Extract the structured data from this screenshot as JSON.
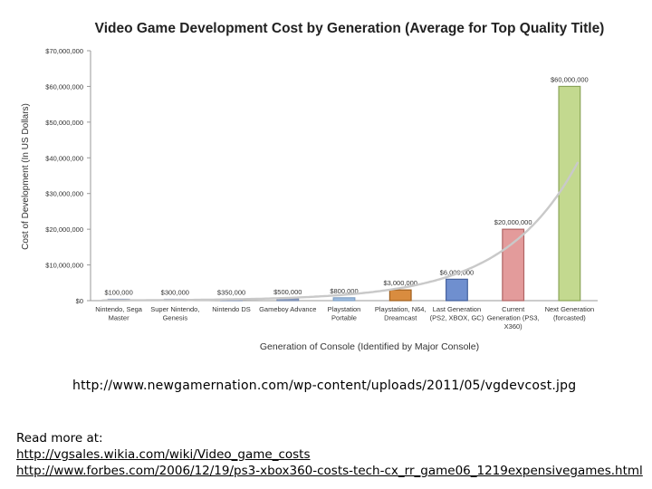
{
  "chart_data": {
    "type": "bar",
    "title": "Video Game Development Cost by Generation (Average for Top Quality Title)",
    "xlabel": "Generation of Console (Identified by Major Console)",
    "ylabel": "Cost of Development (In US Dollars)",
    "ylim": [
      0,
      70000000
    ],
    "ytick_values": [
      0,
      10000000,
      20000000,
      30000000,
      40000000,
      50000000,
      60000000,
      70000000
    ],
    "ytick_labels": [
      "$0",
      "$10,000,000",
      "$20,000,000",
      "$30,000,000",
      "$40,000,000",
      "$50,000,000",
      "$60,000,000",
      "$70,000,000"
    ],
    "categories": [
      [
        "Nintendo, Sega",
        "Master"
      ],
      [
        "Super Nintendo,",
        "Genesis"
      ],
      [
        "Nintendo DS"
      ],
      [
        "Gameboy Advance"
      ],
      [
        "Playstation",
        "Portable"
      ],
      [
        "Playstation, N64,",
        "Dreamcast"
      ],
      [
        "Last Generation",
        "(PS2, XBOX, GC)"
      ],
      [
        "Current",
        "Generation (PS3,",
        "X360)"
      ],
      [
        "Next Generation",
        "(forcasted)"
      ]
    ],
    "values": [
      100000,
      300000,
      350000,
      500000,
      800000,
      3000000,
      6000000,
      20000000,
      60000000
    ],
    "data_labels": [
      "$100,000",
      "$300,000",
      "$350,000",
      "$500,000",
      "$800,000",
      "$3,000,000",
      "$6,000,000",
      "$20,000,000",
      "$60,000,000"
    ],
    "colors": [
      "#b7c3dc",
      "#b7c3dc",
      "#a7b6d3",
      "#9caccd",
      "#9fbfe2",
      "#d98c3f",
      "#6f8fcf",
      "#e39b9b",
      "#c3d98f"
    ],
    "border_colors": [
      "#8595b5",
      "#8595b5",
      "#7d8fb4",
      "#7387ad",
      "#7f9fc4",
      "#a0601f",
      "#44609c",
      "#b06565",
      "#8aa457"
    ],
    "trendline": true,
    "grid": false,
    "legend": "none"
  },
  "source_text": "http://www.newgamernation.com/wp-content/uploads/2011/05/vgdevcost.jpg",
  "read_more": {
    "label": "Read more at:",
    "links": [
      "http://vgsales.wikia.com/wiki/Video_game_costs",
      "http://www.forbes.com/2006/12/19/ps3-xbox360-costs-tech-cx_rr_game06_1219expensivegames.html"
    ]
  }
}
